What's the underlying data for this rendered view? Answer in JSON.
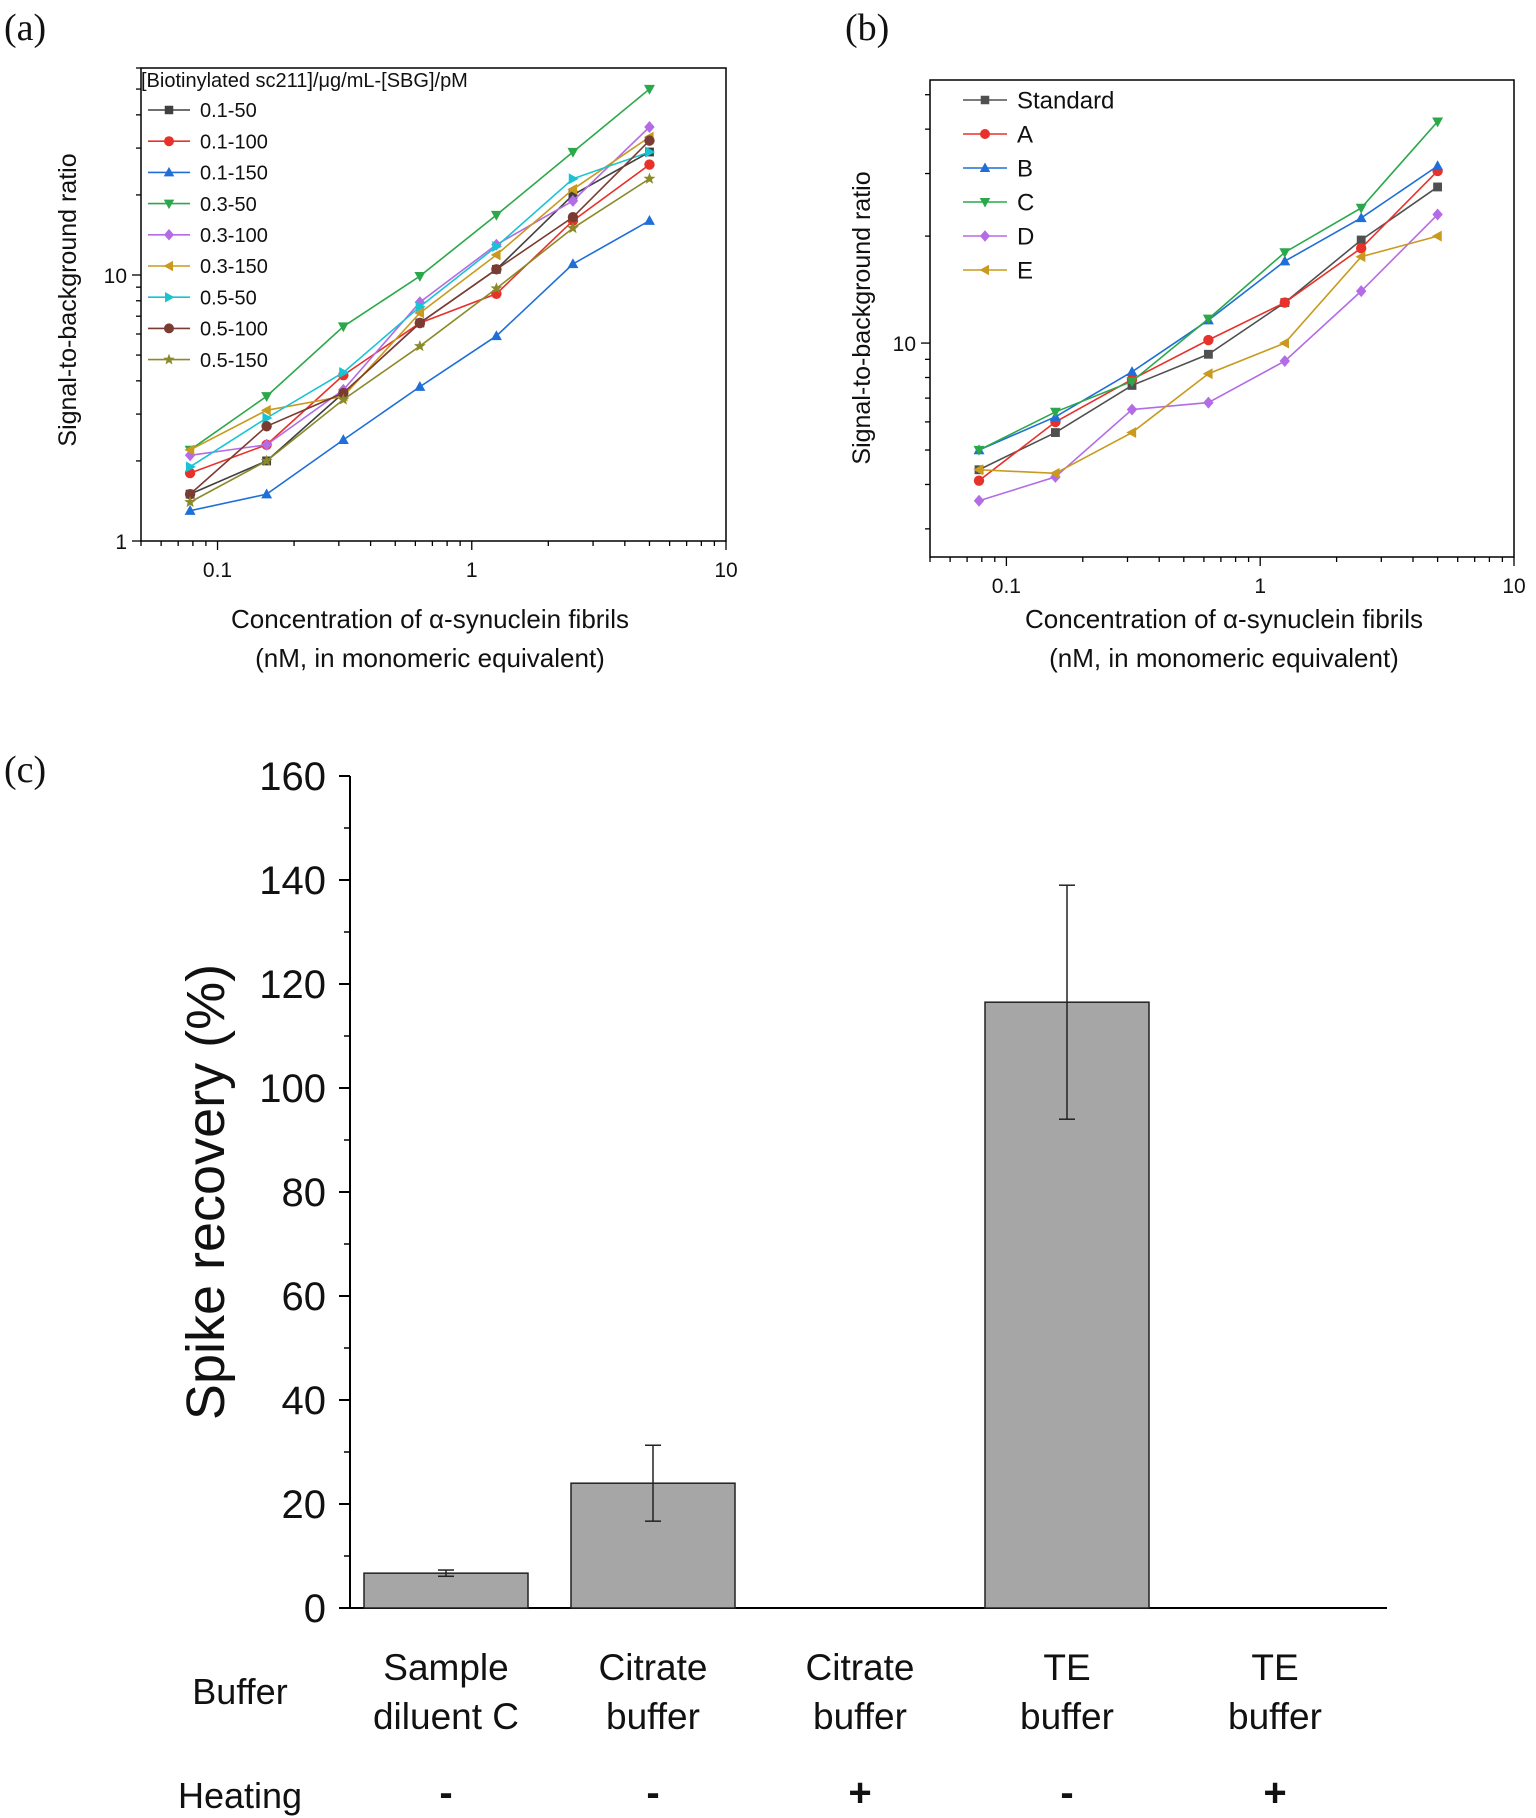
{
  "panel_labels": {
    "a": "(a)",
    "b": "(b)",
    "c": "(c)"
  },
  "chart_data": [
    {
      "id": "a",
      "type": "line",
      "xscale": "log",
      "yscale": "log",
      "xlim": [
        0.05,
        10
      ],
      "ylim": [
        1,
        60
      ],
      "xticks": [
        {
          "v": 0.1,
          "label": "0.1"
        },
        {
          "v": 1,
          "label": "1"
        },
        {
          "v": 10,
          "label": "10"
        }
      ],
      "yticks": [
        {
          "v": 1,
          "label": "1"
        },
        {
          "v": 10,
          "label": "10"
        }
      ],
      "xlabel": [
        "Concentration of α-synuclein fibrils",
        "(nM, in monomeric equivalent)"
      ],
      "ylabel": "Signal-to-background ratio",
      "legend_title": "[Biotinylated sc211]/μg/mL-[SBG]/pM",
      "legend_position": "top-left",
      "x": [
        0.078,
        0.156,
        0.3125,
        0.625,
        1.25,
        2.5,
        5
      ],
      "series": [
        {
          "name": "0.1-50",
          "color": "#404040",
          "marker": "square",
          "values": [
            1.5,
            2.0,
            3.6,
            6.6,
            10.5,
            20.0,
            29.0
          ]
        },
        {
          "name": "0.1-100",
          "color": "#e8312a",
          "marker": "circle",
          "values": [
            1.8,
            2.3,
            4.2,
            6.6,
            8.5,
            16.0,
            26.0
          ]
        },
        {
          "name": "0.1-150",
          "color": "#1f6fd8",
          "marker": "up",
          "values": [
            1.3,
            1.5,
            2.4,
            3.8,
            5.9,
            11.0,
            16.0
          ]
        },
        {
          "name": "0.3-50",
          "color": "#2aa84a",
          "marker": "down",
          "values": [
            2.2,
            3.5,
            6.4,
            9.9,
            16.8,
            29.0,
            50.0
          ]
        },
        {
          "name": "0.3-100",
          "color": "#b36be6",
          "marker": "diamond",
          "values": [
            2.1,
            2.3,
            3.7,
            7.9,
            13.0,
            19.0,
            36.0
          ]
        },
        {
          "name": "0.3-150",
          "color": "#c99a1e",
          "marker": "left",
          "values": [
            2.2,
            3.1,
            3.5,
            7.2,
            11.9,
            21.0,
            33.0
          ]
        },
        {
          "name": "0.5-50",
          "color": "#19c3d3",
          "marker": "right",
          "values": [
            1.9,
            2.9,
            4.3,
            7.6,
            12.8,
            23.0,
            29.0
          ]
        },
        {
          "name": "0.5-100",
          "color": "#7a3b32",
          "marker": "circle",
          "values": [
            1.5,
            2.7,
            3.6,
            6.6,
            10.5,
            16.5,
            32.0
          ]
        },
        {
          "name": "0.5-150",
          "color": "#8a8a2a",
          "marker": "star",
          "values": [
            1.4,
            2.0,
            3.4,
            5.4,
            8.9,
            15.0,
            23.0
          ]
        }
      ]
    },
    {
      "id": "b",
      "type": "line",
      "xscale": "log",
      "yscale": "log",
      "xlim": [
        0.05,
        10
      ],
      "ylim": [
        2.5,
        55
      ],
      "xticks": [
        {
          "v": 0.1,
          "label": "0.1"
        },
        {
          "v": 1,
          "label": "1"
        },
        {
          "v": 10,
          "label": "10"
        }
      ],
      "yticks": [
        {
          "v": 10,
          "label": "10"
        }
      ],
      "xlabel": [
        "Concentration of α-synuclein fibrils",
        "(nM, in monomeric equivalent)"
      ],
      "ylabel": "Signal-to-background ratio",
      "legend_position": "top-left",
      "x": [
        0.078,
        0.156,
        0.3125,
        0.625,
        1.25,
        2.5,
        5
      ],
      "series": [
        {
          "name": "Standard",
          "color": "#505050",
          "marker": "square",
          "values": [
            4.4,
            5.6,
            7.6,
            9.3,
            13.0,
            19.5,
            27.5
          ]
        },
        {
          "name": "A",
          "color": "#e8312a",
          "marker": "circle",
          "values": [
            4.1,
            6.0,
            7.9,
            10.2,
            13.0,
            18.5,
            30.5
          ]
        },
        {
          "name": "B",
          "color": "#1f6fd8",
          "marker": "up",
          "values": [
            5.0,
            6.2,
            8.3,
            11.6,
            17.0,
            22.5,
            31.5
          ]
        },
        {
          "name": "C",
          "color": "#2aa84a",
          "marker": "down",
          "values": [
            5.0,
            6.4,
            7.8,
            11.7,
            18.0,
            24.0,
            42.0
          ]
        },
        {
          "name": "D",
          "color": "#b36be6",
          "marker": "diamond",
          "values": [
            3.6,
            4.2,
            6.5,
            6.8,
            8.9,
            14.0,
            23.0
          ]
        },
        {
          "name": "E",
          "color": "#c99a1e",
          "marker": "left",
          "values": [
            4.4,
            4.3,
            5.6,
            8.2,
            10.0,
            17.5,
            20.0
          ]
        }
      ]
    },
    {
      "id": "c",
      "type": "bar",
      "ylim": [
        0,
        160
      ],
      "yticks": [
        0,
        20,
        40,
        60,
        80,
        100,
        120,
        140,
        160
      ],
      "ylabel": "Spike recovery (%)",
      "bar_color": "#a6a6a6",
      "categories": [
        {
          "buffer": [
            "Sample",
            "diluent C"
          ],
          "heating": "-"
        },
        {
          "buffer": [
            "Citrate",
            "buffer"
          ],
          "heating": "-"
        },
        {
          "buffer": [
            "Citrate",
            "buffer"
          ],
          "heating": "+"
        },
        {
          "buffer": [
            "TE",
            "buffer"
          ],
          "heating": "-"
        },
        {
          "buffer": [
            "TE",
            "buffer"
          ],
          "heating": "+"
        }
      ],
      "values": [
        6.7,
        24.0,
        0,
        116.5,
        0
      ],
      "errors": [
        0.6,
        7.3,
        0,
        22.5,
        0
      ],
      "row_labels": {
        "buffer": "Buffer",
        "heating": "Heating"
      }
    }
  ]
}
